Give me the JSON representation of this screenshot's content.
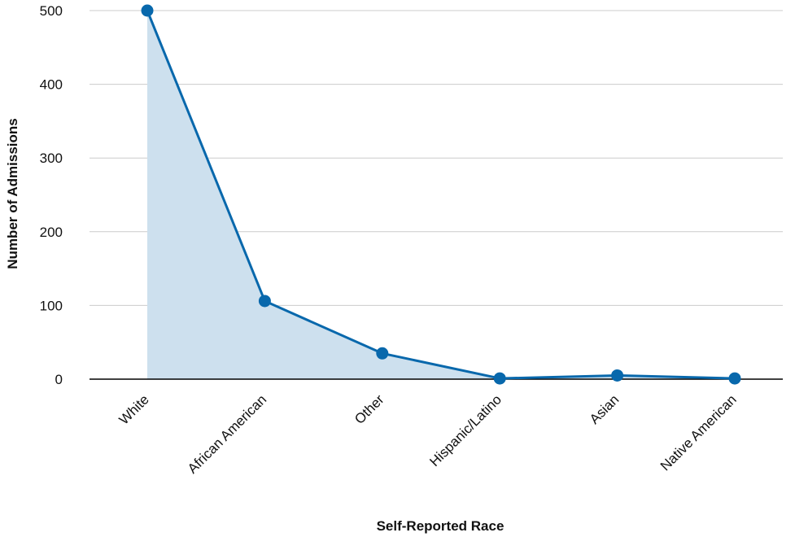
{
  "chart_data": {
    "type": "area",
    "title": "",
    "xlabel": "Self-Reported Race",
    "ylabel": "Number of Admissions",
    "categories": [
      "White",
      "African American",
      "Other",
      "Hispanic/Latino",
      "Asian",
      "Native American"
    ],
    "series": [
      {
        "values": [
          500,
          106,
          35,
          1,
          5,
          1
        ]
      }
    ],
    "ylim": [
      0,
      500
    ],
    "yticks": [
      0,
      100,
      200,
      300,
      400,
      500
    ],
    "grid": "horizontal",
    "legend": "none",
    "colors": {
      "line": "#0868ac",
      "fill": "#cde0ee",
      "grid": "#cccccc",
      "axis": "#000000"
    }
  }
}
